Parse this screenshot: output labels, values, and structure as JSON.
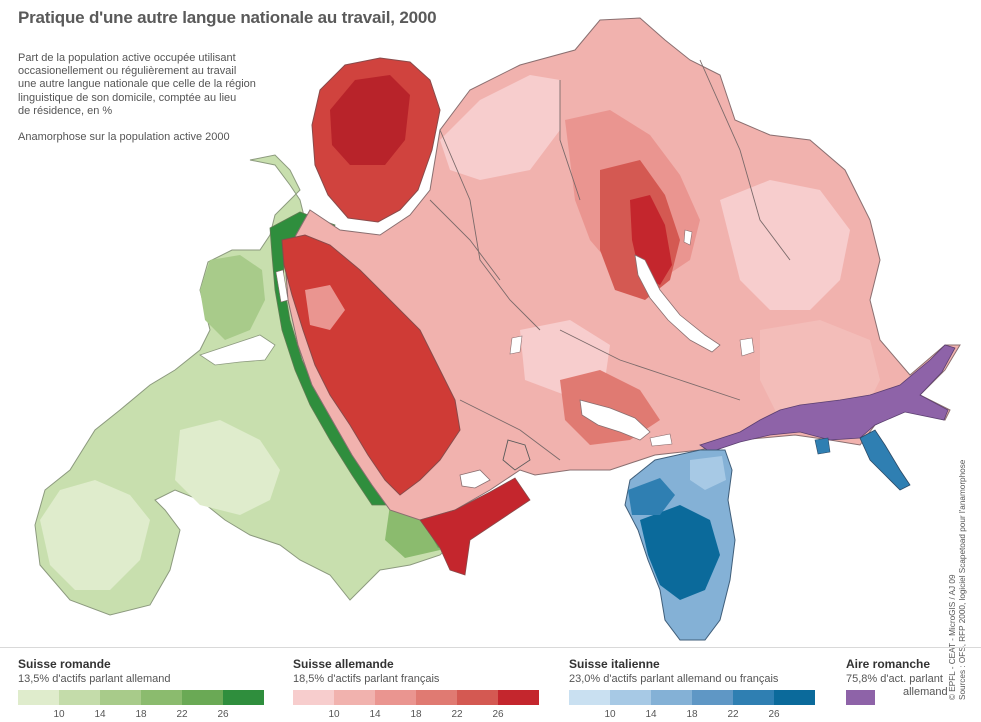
{
  "title": "Pratique d'une autre langue nationale au travail, 2000",
  "description": {
    "line1": "Part de la population active occupée utilisant",
    "line2": "occasionellement ou régulièrement au travail",
    "line3": "une autre langue nationale que celle de la région",
    "line4": "linguistique de son domicile, comptée au lieu",
    "line5": "de résidence, en %",
    "note": "Anamorphose sur la population active 2000"
  },
  "credits": {
    "line1": "© EPFL - CEAT - MicroGIS / AJ 09",
    "line2": "Sources : OFS, RFP 2000, logiciel Scapetoad pour l'anamorphose"
  },
  "legend": {
    "romande": {
      "title": "Suisse romande",
      "subtitle": "13,5% d'actifs parlant allemand",
      "colors": [
        "#dfeccc",
        "#c4dcaa",
        "#a8cb8a",
        "#8bbb6e",
        "#6aa955",
        "#2f8e3d"
      ]
    },
    "allemande": {
      "title": "Suisse allemande",
      "subtitle": "18,5% d'actifs parlant français",
      "colors": [
        "#f7cdcd",
        "#f1b2ae",
        "#ea9590",
        "#e07a72",
        "#d45952",
        "#c4262d"
      ]
    },
    "italienne": {
      "title": "Suisse italienne",
      "subtitle": "23,0% d'actifs parlant allemand ou français",
      "colors": [
        "#c9e0f1",
        "#a7c9e5",
        "#84b1d6",
        "#5f97c5",
        "#2f7fb2",
        "#0b6a9b"
      ]
    },
    "romanche": {
      "title": "Aire romanche",
      "subtitle1": "75,8% d'act. parlant",
      "subtitle2": "allemand",
      "color": "#8e63a8"
    },
    "ticks": [
      "10",
      "14",
      "18",
      "22",
      "26"
    ]
  }
}
